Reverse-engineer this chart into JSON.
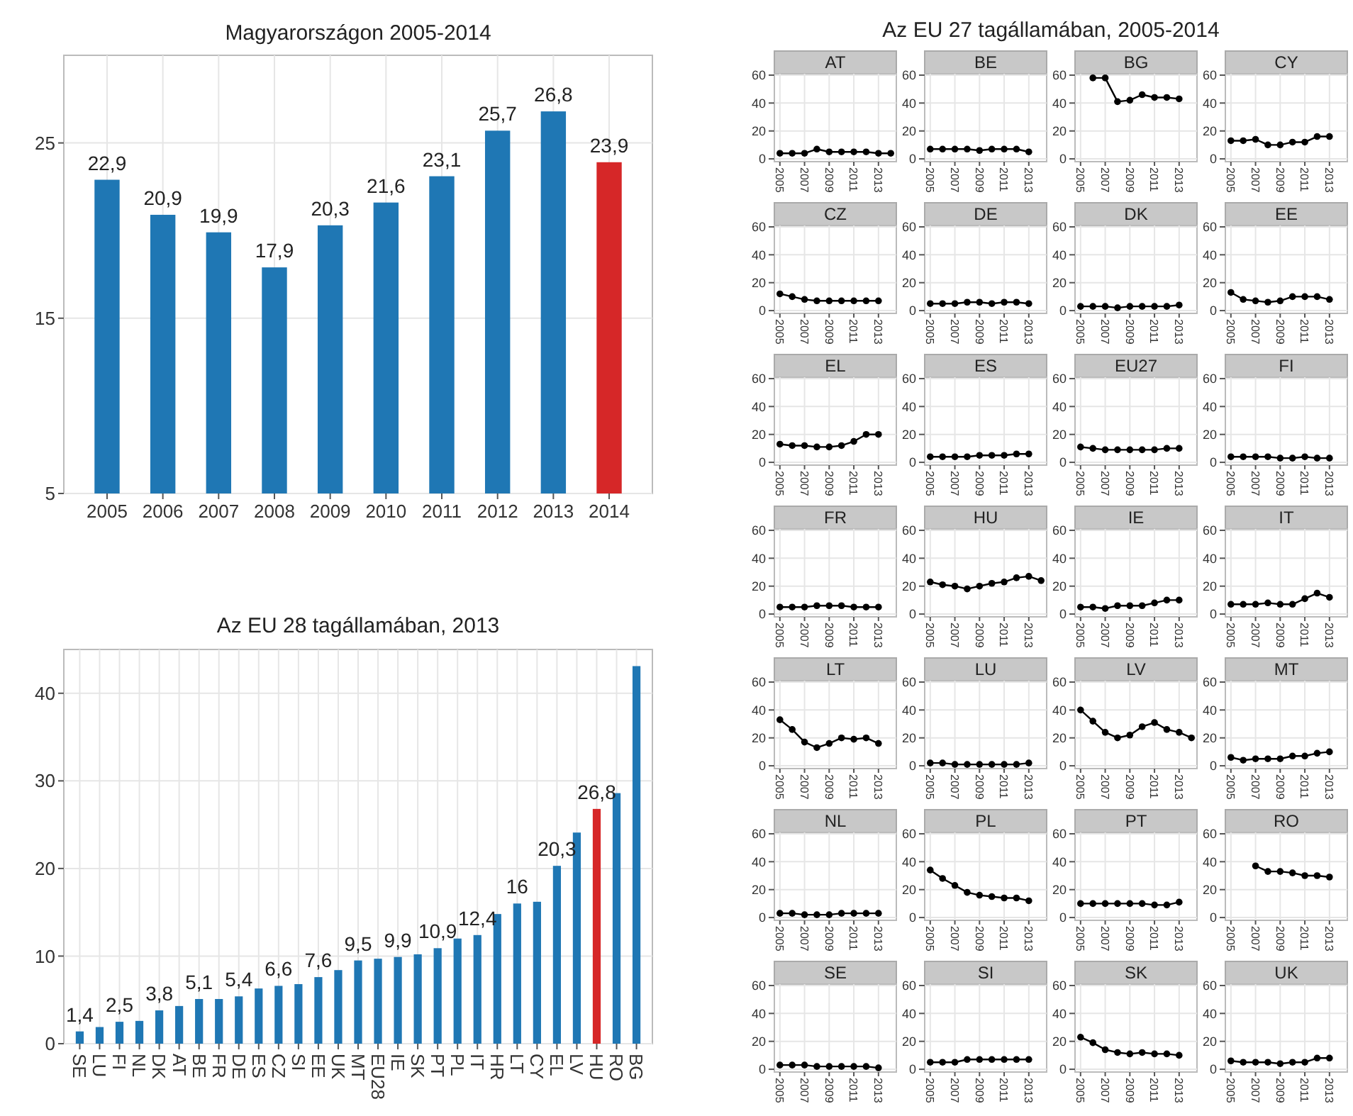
{
  "chart_data": [
    {
      "type": "bar",
      "title": "Magyarországon 2005-2014",
      "categories": [
        "2005",
        "2006",
        "2007",
        "2008",
        "2009",
        "2010",
        "2011",
        "2012",
        "2013",
        "2014"
      ],
      "values": [
        22.9,
        20.9,
        19.9,
        17.9,
        20.3,
        21.6,
        23.1,
        25.7,
        26.8,
        23.9
      ],
      "value_labels": [
        "22,9",
        "20,9",
        "19,9",
        "17,9",
        "20,3",
        "21,6",
        "23,1",
        "25,7",
        "26,8",
        "23,9"
      ],
      "colors": [
        "#1f77b4",
        "#1f77b4",
        "#1f77b4",
        "#1f77b4",
        "#1f77b4",
        "#1f77b4",
        "#1f77b4",
        "#1f77b4",
        "#1f77b4",
        "#d62728"
      ],
      "ylim": [
        5,
        30
      ],
      "yticks": [
        5,
        15,
        25
      ],
      "grid": true
    },
    {
      "type": "bar",
      "title": "Az EU 28 tagállamában, 2013",
      "categories": [
        "SE",
        "LU",
        "FI",
        "NL",
        "DK",
        "AT",
        "BE",
        "FR",
        "DE",
        "ES",
        "CZ",
        "SI",
        "EE",
        "UK",
        "MT",
        "EU28",
        "IE",
        "SK",
        "PT",
        "PL",
        "IT",
        "HR",
        "LT",
        "CY",
        "EL",
        "LV",
        "HU",
        "RO",
        "BG"
      ],
      "values": [
        1.4,
        1.9,
        2.5,
        2.6,
        3.8,
        4.3,
        5.1,
        5.1,
        5.4,
        6.3,
        6.6,
        6.8,
        7.6,
        8.4,
        9.5,
        9.7,
        9.9,
        10.2,
        10.9,
        12.0,
        12.4,
        14.8,
        16,
        16.2,
        20.3,
        24.1,
        26.8,
        28.6,
        43.1
      ],
      "value_labels": [
        "1,4",
        null,
        "2,5",
        null,
        "3,8",
        null,
        "5,1",
        null,
        "5,4",
        null,
        "6,6",
        null,
        "7,6",
        null,
        "9,5",
        null,
        "9,9",
        null,
        "10,9",
        null,
        "12,4",
        null,
        "16",
        null,
        "20,3",
        null,
        "26,8",
        null,
        null
      ],
      "colors": [
        "#1f77b4",
        "#1f77b4",
        "#1f77b4",
        "#1f77b4",
        "#1f77b4",
        "#1f77b4",
        "#1f77b4",
        "#1f77b4",
        "#1f77b4",
        "#1f77b4",
        "#1f77b4",
        "#1f77b4",
        "#1f77b4",
        "#1f77b4",
        "#1f77b4",
        "#1f77b4",
        "#1f77b4",
        "#1f77b4",
        "#1f77b4",
        "#1f77b4",
        "#1f77b4",
        "#1f77b4",
        "#1f77b4",
        "#1f77b4",
        "#1f77b4",
        "#1f77b4",
        "#d62728",
        "#1f77b4",
        "#1f77b4"
      ],
      "ylim": [
        0,
        45
      ],
      "yticks": [
        0,
        10,
        20,
        30,
        40
      ],
      "grid": true
    },
    {
      "type": "other",
      "title": "Az EU 27 tagállamában, 2005-2014"
    },
    {
      "type": "line",
      "title": "AT",
      "x": [
        2005,
        2006,
        2007,
        2008,
        2009,
        2010,
        2011,
        2012,
        2013,
        2014
      ],
      "series": [
        {
          "color": "#000000",
          "values": [
            4,
            4,
            4,
            7,
            5,
            5,
            5,
            5,
            4,
            4
          ]
        }
      ],
      "xlim": [
        2004.55,
        2014.45
      ],
      "ylim": [
        -2,
        61
      ],
      "xticks": [
        2005,
        2007,
        2009,
        2011,
        2013
      ],
      "yticks": [
        0,
        20,
        40,
        60
      ],
      "grid": true,
      "marker": "circle"
    },
    {
      "type": "line",
      "title": "BE",
      "x": [
        2005,
        2006,
        2007,
        2008,
        2009,
        2010,
        2011,
        2012,
        2013
      ],
      "series": [
        {
          "color": "#000000",
          "values": [
            7,
            7,
            7,
            7,
            6,
            7,
            7,
            7,
            5
          ]
        }
      ],
      "xlim": [
        2004.55,
        2014.45
      ],
      "ylim": [
        -2,
        61
      ],
      "xticks": [
        2005,
        2007,
        2009,
        2011,
        2013
      ],
      "yticks": [
        0,
        20,
        40,
        60
      ],
      "grid": true,
      "marker": "circle"
    },
    {
      "type": "line",
      "title": "BG",
      "x": [
        2006,
        2007,
        2008,
        2009,
        2010,
        2011,
        2012,
        2013
      ],
      "series": [
        {
          "color": "#000000",
          "values": [
            58,
            58,
            41,
            42,
            46,
            44,
            44,
            43
          ]
        }
      ],
      "xlim": [
        2004.55,
        2014.45
      ],
      "ylim": [
        -2,
        61
      ],
      "xticks": [
        2005,
        2007,
        2009,
        2011,
        2013
      ],
      "yticks": [
        0,
        20,
        40,
        60
      ],
      "grid": true,
      "marker": "circle"
    },
    {
      "type": "line",
      "title": "CY",
      "x": [
        2005,
        2006,
        2007,
        2008,
        2009,
        2010,
        2011,
        2012,
        2013
      ],
      "series": [
        {
          "color": "#000000",
          "values": [
            13,
            13,
            14,
            10,
            10,
            12,
            12,
            16,
            16
          ]
        }
      ],
      "xlim": [
        2004.55,
        2014.45
      ],
      "ylim": [
        -2,
        61
      ],
      "xticks": [
        2005,
        2007,
        2009,
        2011,
        2013
      ],
      "yticks": [
        0,
        20,
        40,
        60
      ],
      "grid": true,
      "marker": "circle"
    },
    {
      "type": "line",
      "title": "CZ",
      "x": [
        2005,
        2006,
        2007,
        2008,
        2009,
        2010,
        2011,
        2012,
        2013
      ],
      "series": [
        {
          "color": "#000000",
          "values": [
            12,
            10,
            8,
            7,
            7,
            7,
            7,
            7,
            7
          ]
        }
      ],
      "xlim": [
        2004.55,
        2014.45
      ],
      "ylim": [
        -2,
        61
      ],
      "xticks": [
        2005,
        2007,
        2009,
        2011,
        2013
      ],
      "yticks": [
        0,
        20,
        40,
        60
      ],
      "grid": true,
      "marker": "circle"
    },
    {
      "type": "line",
      "title": "DE",
      "x": [
        2005,
        2006,
        2007,
        2008,
        2009,
        2010,
        2011,
        2012,
        2013
      ],
      "series": [
        {
          "color": "#000000",
          "values": [
            5,
            5,
            5,
            6,
            6,
            5,
            6,
            6,
            5
          ]
        }
      ],
      "xlim": [
        2004.55,
        2014.45
      ],
      "ylim": [
        -2,
        61
      ],
      "xticks": [
        2005,
        2007,
        2009,
        2011,
        2013
      ],
      "yticks": [
        0,
        20,
        40,
        60
      ],
      "grid": true,
      "marker": "circle"
    },
    {
      "type": "line",
      "title": "DK",
      "x": [
        2005,
        2006,
        2007,
        2008,
        2009,
        2010,
        2011,
        2012,
        2013
      ],
      "series": [
        {
          "color": "#000000",
          "values": [
            3,
            3,
            3,
            2,
            3,
            3,
            3,
            3,
            4
          ]
        }
      ],
      "xlim": [
        2004.55,
        2014.45
      ],
      "ylim": [
        -2,
        61
      ],
      "xticks": [
        2005,
        2007,
        2009,
        2011,
        2013
      ],
      "yticks": [
        0,
        20,
        40,
        60
      ],
      "grid": true,
      "marker": "circle"
    },
    {
      "type": "line",
      "title": "EE",
      "x": [
        2005,
        2006,
        2007,
        2008,
        2009,
        2010,
        2011,
        2012,
        2013
      ],
      "series": [
        {
          "color": "#000000",
          "values": [
            13,
            8,
            7,
            6,
            7,
            10,
            10,
            10,
            8
          ]
        }
      ],
      "xlim": [
        2004.55,
        2014.45
      ],
      "ylim": [
        -2,
        61
      ],
      "xticks": [
        2005,
        2007,
        2009,
        2011,
        2013
      ],
      "yticks": [
        0,
        20,
        40,
        60
      ],
      "grid": true,
      "marker": "circle"
    },
    {
      "type": "line",
      "title": "EL",
      "x": [
        2005,
        2006,
        2007,
        2008,
        2009,
        2010,
        2011,
        2012,
        2013
      ],
      "series": [
        {
          "color": "#000000",
          "values": [
            13,
            12,
            12,
            11,
            11,
            12,
            15,
            20,
            20
          ]
        }
      ],
      "xlim": [
        2004.55,
        2014.45
      ],
      "ylim": [
        -2,
        61
      ],
      "xticks": [
        2005,
        2007,
        2009,
        2011,
        2013
      ],
      "yticks": [
        0,
        20,
        40,
        60
      ],
      "grid": true,
      "marker": "circle"
    },
    {
      "type": "line",
      "title": "ES",
      "x": [
        2005,
        2006,
        2007,
        2008,
        2009,
        2010,
        2011,
        2012,
        2013
      ],
      "series": [
        {
          "color": "#000000",
          "values": [
            4,
            4,
            4,
            4,
            5,
            5,
            5,
            6,
            6
          ]
        }
      ],
      "xlim": [
        2004.55,
        2014.45
      ],
      "ylim": [
        -2,
        61
      ],
      "xticks": [
        2005,
        2007,
        2009,
        2011,
        2013
      ],
      "yticks": [
        0,
        20,
        40,
        60
      ],
      "grid": true,
      "marker": "circle"
    },
    {
      "type": "line",
      "title": "EU27",
      "x": [
        2005,
        2006,
        2007,
        2008,
        2009,
        2010,
        2011,
        2012,
        2013
      ],
      "series": [
        {
          "color": "#000000",
          "values": [
            11,
            10,
            9,
            9,
            9,
            9,
            9,
            10,
            10
          ]
        }
      ],
      "xlim": [
        2004.55,
        2014.45
      ],
      "ylim": [
        -2,
        61
      ],
      "xticks": [
        2005,
        2007,
        2009,
        2011,
        2013
      ],
      "yticks": [
        0,
        20,
        40,
        60
      ],
      "grid": true,
      "marker": "circle"
    },
    {
      "type": "line",
      "title": "FI",
      "x": [
        2005,
        2006,
        2007,
        2008,
        2009,
        2010,
        2011,
        2012,
        2013
      ],
      "series": [
        {
          "color": "#000000",
          "values": [
            4,
            4,
            4,
            4,
            3,
            3,
            4,
            3,
            3
          ]
        }
      ],
      "xlim": [
        2004.55,
        2014.45
      ],
      "ylim": [
        -2,
        61
      ],
      "xticks": [
        2005,
        2007,
        2009,
        2011,
        2013
      ],
      "yticks": [
        0,
        20,
        40,
        60
      ],
      "grid": true,
      "marker": "circle"
    },
    {
      "type": "line",
      "title": "FR",
      "x": [
        2005,
        2006,
        2007,
        2008,
        2009,
        2010,
        2011,
        2012,
        2013
      ],
      "series": [
        {
          "color": "#000000",
          "values": [
            5,
            5,
            5,
            6,
            6,
            6,
            5,
            5,
            5
          ]
        }
      ],
      "xlim": [
        2004.55,
        2014.45
      ],
      "ylim": [
        -2,
        61
      ],
      "xticks": [
        2005,
        2007,
        2009,
        2011,
        2013
      ],
      "yticks": [
        0,
        20,
        40,
        60
      ],
      "grid": true,
      "marker": "circle"
    },
    {
      "type": "line",
      "title": "HU",
      "x": [
        2005,
        2006,
        2007,
        2008,
        2009,
        2010,
        2011,
        2012,
        2013,
        2014
      ],
      "series": [
        {
          "color": "#000000",
          "values": [
            23,
            21,
            20,
            18,
            20,
            22,
            23,
            26,
            27,
            24
          ]
        }
      ],
      "xlim": [
        2004.55,
        2014.45
      ],
      "ylim": [
        -2,
        61
      ],
      "xticks": [
        2005,
        2007,
        2009,
        2011,
        2013
      ],
      "yticks": [
        0,
        20,
        40,
        60
      ],
      "grid": true,
      "marker": "circle"
    },
    {
      "type": "line",
      "title": "IE",
      "x": [
        2005,
        2006,
        2007,
        2008,
        2009,
        2010,
        2011,
        2012,
        2013
      ],
      "series": [
        {
          "color": "#000000",
          "values": [
            5,
            5,
            4,
            6,
            6,
            6,
            8,
            10,
            10
          ]
        }
      ],
      "xlim": [
        2004.55,
        2014.45
      ],
      "ylim": [
        -2,
        61
      ],
      "xticks": [
        2005,
        2007,
        2009,
        2011,
        2013
      ],
      "yticks": [
        0,
        20,
        40,
        60
      ],
      "grid": true,
      "marker": "circle"
    },
    {
      "type": "line",
      "title": "IT",
      "x": [
        2005,
        2006,
        2007,
        2008,
        2009,
        2010,
        2011,
        2012,
        2013
      ],
      "series": [
        {
          "color": "#000000",
          "values": [
            7,
            7,
            7,
            8,
            7,
            7,
            11,
            15,
            12
          ]
        }
      ],
      "xlim": [
        2004.55,
        2014.45
      ],
      "ylim": [
        -2,
        61
      ],
      "xticks": [
        2005,
        2007,
        2009,
        2011,
        2013
      ],
      "yticks": [
        0,
        20,
        40,
        60
      ],
      "grid": true,
      "marker": "circle"
    },
    {
      "type": "line",
      "title": "LT",
      "x": [
        2005,
        2006,
        2007,
        2008,
        2009,
        2010,
        2011,
        2012,
        2013
      ],
      "series": [
        {
          "color": "#000000",
          "values": [
            33,
            26,
            17,
            13,
            16,
            20,
            19,
            20,
            16
          ]
        }
      ],
      "xlim": [
        2004.55,
        2014.45
      ],
      "ylim": [
        -2,
        61
      ],
      "xticks": [
        2005,
        2007,
        2009,
        2011,
        2013
      ],
      "yticks": [
        0,
        20,
        40,
        60
      ],
      "grid": true,
      "marker": "circle"
    },
    {
      "type": "line",
      "title": "LU",
      "x": [
        2005,
        2006,
        2007,
        2008,
        2009,
        2010,
        2011,
        2012,
        2013
      ],
      "series": [
        {
          "color": "#000000",
          "values": [
            2,
            2,
            1,
            1,
            1,
            1,
            1,
            1,
            2
          ]
        }
      ],
      "xlim": [
        2004.55,
        2014.45
      ],
      "ylim": [
        -2,
        61
      ],
      "xticks": [
        2005,
        2007,
        2009,
        2011,
        2013
      ],
      "yticks": [
        0,
        20,
        40,
        60
      ],
      "grid": true,
      "marker": "circle"
    },
    {
      "type": "line",
      "title": "LV",
      "x": [
        2005,
        2006,
        2007,
        2008,
        2009,
        2010,
        2011,
        2012,
        2013,
        2014
      ],
      "series": [
        {
          "color": "#000000",
          "values": [
            40,
            32,
            24,
            20,
            22,
            28,
            31,
            26,
            24,
            20
          ]
        }
      ],
      "xlim": [
        2004.55,
        2014.45
      ],
      "ylim": [
        -2,
        61
      ],
      "xticks": [
        2005,
        2007,
        2009,
        2011,
        2013
      ],
      "yticks": [
        0,
        20,
        40,
        60
      ],
      "grid": true,
      "marker": "circle"
    },
    {
      "type": "line",
      "title": "MT",
      "x": [
        2005,
        2006,
        2007,
        2008,
        2009,
        2010,
        2011,
        2012,
        2013
      ],
      "series": [
        {
          "color": "#000000",
          "values": [
            6,
            4,
            5,
            5,
            5,
            7,
            7,
            9,
            10
          ]
        }
      ],
      "xlim": [
        2004.55,
        2014.45
      ],
      "ylim": [
        -2,
        61
      ],
      "xticks": [
        2005,
        2007,
        2009,
        2011,
        2013
      ],
      "yticks": [
        0,
        20,
        40,
        60
      ],
      "grid": true,
      "marker": "circle"
    },
    {
      "type": "line",
      "title": "NL",
      "x": [
        2005,
        2006,
        2007,
        2008,
        2009,
        2010,
        2011,
        2012,
        2013
      ],
      "series": [
        {
          "color": "#000000",
          "values": [
            3,
            3,
            2,
            2,
            2,
            3,
            3,
            3,
            3
          ]
        }
      ],
      "xlim": [
        2004.55,
        2014.45
      ],
      "ylim": [
        -2,
        61
      ],
      "xticks": [
        2005,
        2007,
        2009,
        2011,
        2013
      ],
      "yticks": [
        0,
        20,
        40,
        60
      ],
      "grid": true,
      "marker": "circle"
    },
    {
      "type": "line",
      "title": "PL",
      "x": [
        2005,
        2006,
        2007,
        2008,
        2009,
        2010,
        2011,
        2012,
        2013
      ],
      "series": [
        {
          "color": "#000000",
          "values": [
            34,
            28,
            23,
            18,
            16,
            15,
            14,
            14,
            12
          ]
        }
      ],
      "xlim": [
        2004.55,
        2014.45
      ],
      "ylim": [
        -2,
        61
      ],
      "xticks": [
        2005,
        2007,
        2009,
        2011,
        2013
      ],
      "yticks": [
        0,
        20,
        40,
        60
      ],
      "grid": true,
      "marker": "circle"
    },
    {
      "type": "line",
      "title": "PT",
      "x": [
        2005,
        2006,
        2007,
        2008,
        2009,
        2010,
        2011,
        2012,
        2013
      ],
      "series": [
        {
          "color": "#000000",
          "values": [
            10,
            10,
            10,
            10,
            10,
            10,
            9,
            9,
            11
          ]
        }
      ],
      "xlim": [
        2004.55,
        2014.45
      ],
      "ylim": [
        -2,
        61
      ],
      "xticks": [
        2005,
        2007,
        2009,
        2011,
        2013
      ],
      "yticks": [
        0,
        20,
        40,
        60
      ],
      "grid": true,
      "marker": "circle"
    },
    {
      "type": "line",
      "title": "RO",
      "x": [
        2007,
        2008,
        2009,
        2010,
        2011,
        2012,
        2013
      ],
      "series": [
        {
          "color": "#000000",
          "values": [
            37,
            33,
            33,
            32,
            30,
            30,
            29
          ]
        }
      ],
      "xlim": [
        2004.55,
        2014.45
      ],
      "ylim": [
        -2,
        61
      ],
      "xticks": [
        2005,
        2007,
        2009,
        2011,
        2013
      ],
      "yticks": [
        0,
        20,
        40,
        60
      ],
      "grid": true,
      "marker": "circle"
    },
    {
      "type": "line",
      "title": "SE",
      "x": [
        2005,
        2006,
        2007,
        2008,
        2009,
        2010,
        2011,
        2012,
        2013
      ],
      "series": [
        {
          "color": "#000000",
          "values": [
            3,
            3,
            3,
            2,
            2,
            2,
            2,
            2,
            1
          ]
        }
      ],
      "xlim": [
        2004.55,
        2014.45
      ],
      "ylim": [
        -2,
        61
      ],
      "xticks": [
        2005,
        2007,
        2009,
        2011,
        2013
      ],
      "yticks": [
        0,
        20,
        40,
        60
      ],
      "grid": true,
      "marker": "circle"
    },
    {
      "type": "line",
      "title": "SI",
      "x": [
        2005,
        2006,
        2007,
        2008,
        2009,
        2010,
        2011,
        2012,
        2013
      ],
      "series": [
        {
          "color": "#000000",
          "values": [
            5,
            5,
            5,
            7,
            7,
            7,
            7,
            7,
            7
          ]
        }
      ],
      "xlim": [
        2004.55,
        2014.45
      ],
      "ylim": [
        -2,
        61
      ],
      "xticks": [
        2005,
        2007,
        2009,
        2011,
        2013
      ],
      "yticks": [
        0,
        20,
        40,
        60
      ],
      "grid": true,
      "marker": "circle"
    },
    {
      "type": "line",
      "title": "SK",
      "x": [
        2005,
        2006,
        2007,
        2008,
        2009,
        2010,
        2011,
        2012,
        2013
      ],
      "series": [
        {
          "color": "#000000",
          "values": [
            23,
            19,
            14,
            12,
            11,
            12,
            11,
            11,
            10
          ]
        }
      ],
      "xlim": [
        2004.55,
        2014.45
      ],
      "ylim": [
        -2,
        61
      ],
      "xticks": [
        2005,
        2007,
        2009,
        2011,
        2013
      ],
      "yticks": [
        0,
        20,
        40,
        60
      ],
      "grid": true,
      "marker": "circle"
    },
    {
      "type": "line",
      "title": "UK",
      "x": [
        2005,
        2006,
        2007,
        2008,
        2009,
        2010,
        2011,
        2012,
        2013
      ],
      "series": [
        {
          "color": "#000000",
          "values": [
            6,
            5,
            5,
            5,
            4,
            5,
            5,
            8,
            8
          ]
        }
      ],
      "xlim": [
        2004.55,
        2014.45
      ],
      "ylim": [
        -2,
        61
      ],
      "xticks": [
        2005,
        2007,
        2009,
        2011,
        2013
      ],
      "yticks": [
        0,
        20,
        40,
        60
      ],
      "grid": true,
      "marker": "circle"
    }
  ]
}
